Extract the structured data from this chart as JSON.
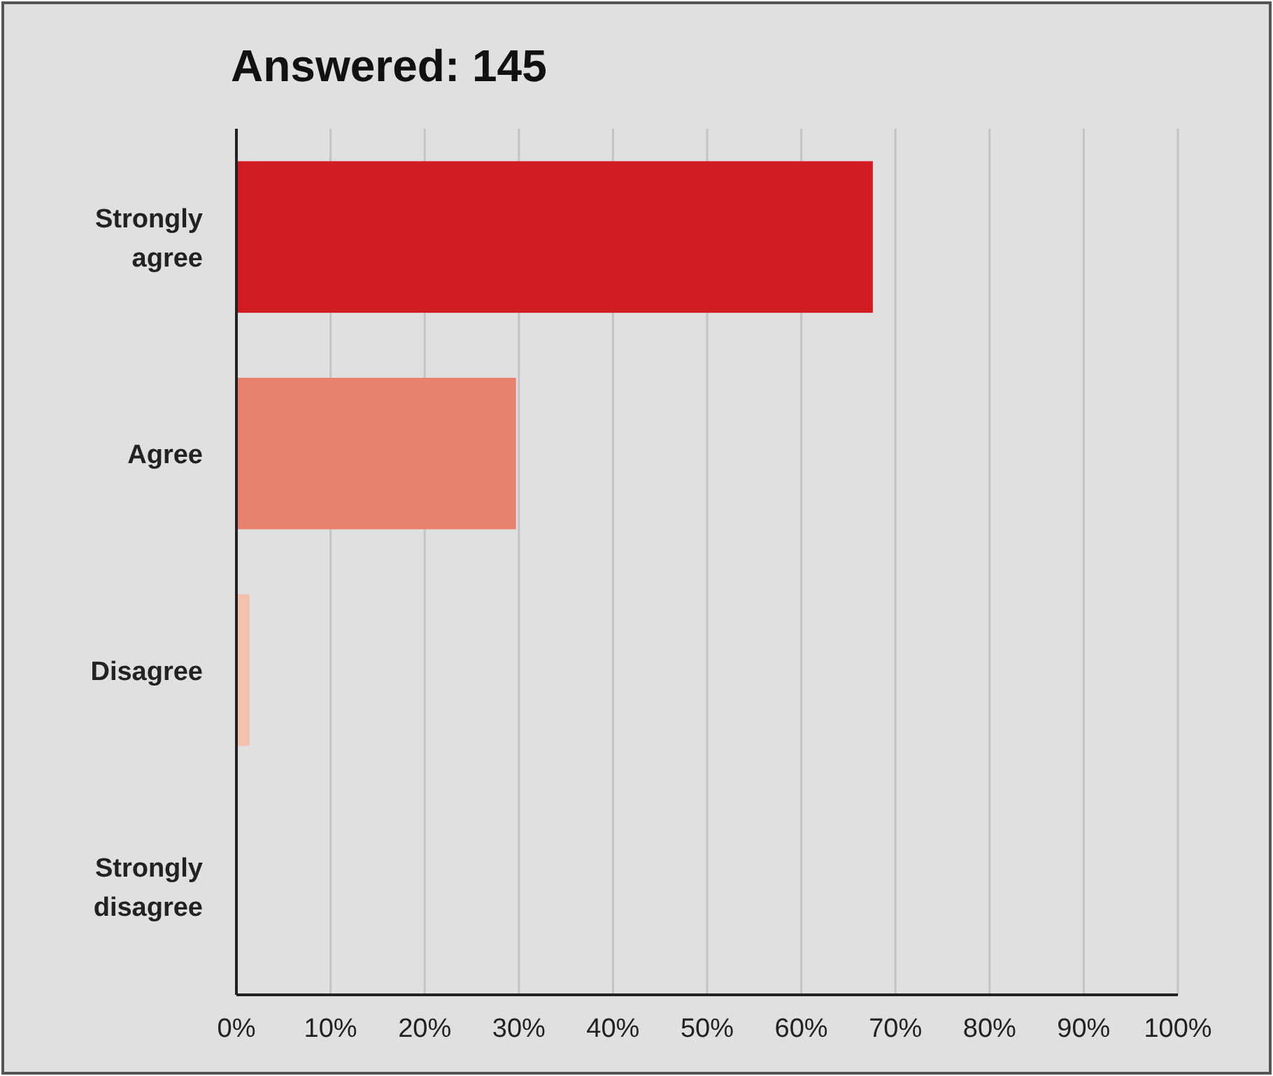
{
  "chart_data": {
    "type": "bar",
    "orientation": "horizontal",
    "title": "Answered: 145",
    "categories": [
      "Strongly agree",
      "Agree",
      "Disagree",
      "Strongly disagree"
    ],
    "values": [
      67.6,
      29.7,
      1.4,
      0
    ],
    "colors": [
      "#d11d22",
      "#e6826e",
      "#f4c0b0",
      "#f4c0b0"
    ],
    "xlim": [
      0,
      100
    ],
    "xticks": [
      {
        "value": 0,
        "label": "0%"
      },
      {
        "value": 10,
        "label": "10%"
      },
      {
        "value": 20,
        "label": "20%"
      },
      {
        "value": 30,
        "label": "30%"
      },
      {
        "value": 40,
        "label": "40%"
      },
      {
        "value": 50,
        "label": "50%"
      },
      {
        "value": 60,
        "label": "60%"
      },
      {
        "value": 70,
        "label": "70%"
      },
      {
        "value": 80,
        "label": "80%"
      },
      {
        "value": 90,
        "label": "90%"
      },
      {
        "value": 100,
        "label": "100%"
      }
    ],
    "grid": "x"
  }
}
